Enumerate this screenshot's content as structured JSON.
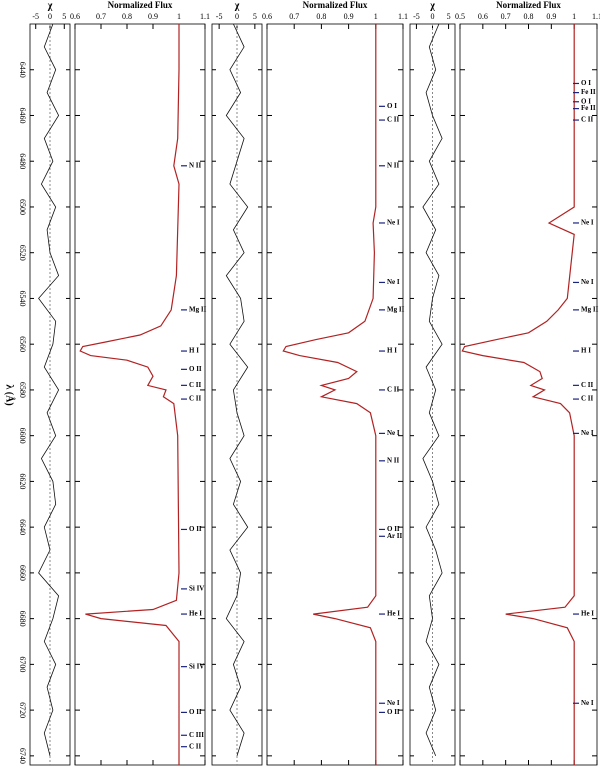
{
  "chart_data": {
    "type": "line",
    "x_label": "λ (Å)",
    "xlim": [
      6420,
      6744
    ],
    "xticks": [
      6440,
      6460,
      6480,
      6500,
      6520,
      6540,
      6560,
      6580,
      6600,
      6620,
      6640,
      6660,
      6680,
      6700,
      6720,
      6740
    ],
    "chi_label": "χ",
    "flux_label": "Normalized Flux",
    "panels": [
      {
        "flux_lim": [
          0.6,
          1.1
        ],
        "flux_ticks": [
          0.6,
          0.7,
          0.8,
          0.9,
          1,
          1.1
        ],
        "chi_lim": [
          -7,
          7
        ],
        "chi_ticks": [
          -5,
          0,
          5
        ],
        "x": [
          6420,
          6440,
          6470,
          6482,
          6490,
          6530,
          6545,
          6552,
          6556,
          6559,
          6561,
          6563,
          6565,
          6567,
          6570,
          6574,
          6578,
          6580,
          6583,
          6586,
          6600,
          6660,
          6672,
          6676,
          6678,
          6680,
          6683,
          6690,
          6744
        ],
        "model": {
          "color": "#b22222",
          "values": [
            1,
            1,
            0.995,
            0.98,
            1,
            0.99,
            0.97,
            0.93,
            0.85,
            0.72,
            0.63,
            0.62,
            0.66,
            0.8,
            0.88,
            0.9,
            0.88,
            0.95,
            0.94,
            0.98,
            0.995,
            1,
            0.99,
            0.9,
            0.64,
            0.7,
            0.95,
            1,
            1
          ]
        },
        "residual": {
          "color": "#111111",
          "values": [
            1,
            -2,
            2,
            -1,
            3,
            -2,
            1,
            -3,
            2,
            -1,
            0,
            3,
            -4,
            2,
            1,
            -2,
            3,
            -1,
            2,
            -3,
            1,
            2,
            -2,
            0,
            -4,
            3,
            1,
            -2,
            2,
            -1,
            1,
            -2,
            0
          ]
        },
        "lines": [
          {
            "label": "N II",
            "wavelength": 6482
          },
          {
            "label": "Mg II",
            "wavelength": 6545
          },
          {
            "label": "H I",
            "wavelength": 6563
          },
          {
            "label": "O II",
            "wavelength": 6571
          },
          {
            "label": "C II",
            "wavelength": 6578
          },
          {
            "label": "C II",
            "wavelength": 6584
          },
          {
            "label": "O II",
            "wavelength": 6641
          },
          {
            "label": "Si IV",
            "wavelength": 6667
          },
          {
            "label": "He I",
            "wavelength": 6678
          },
          {
            "label": "Si IV",
            "wavelength": 6701
          },
          {
            "label": "O II",
            "wavelength": 6721
          },
          {
            "label": "C III",
            "wavelength": 6731
          },
          {
            "label": "C II",
            "wavelength": 6736
          }
        ]
      },
      {
        "flux_lim": [
          0.6,
          1.1
        ],
        "flux_ticks": [
          0.6,
          0.7,
          0.8,
          0.9,
          1,
          1.1
        ],
        "chi_lim": [
          -7,
          7
        ],
        "chi_ticks": [
          -5,
          0,
          5
        ],
        "x": [
          6420,
          6500,
          6507,
          6520,
          6540,
          6550,
          6555,
          6558,
          6561,
          6563,
          6565,
          6568,
          6572,
          6575,
          6578,
          6580,
          6583,
          6586,
          6590,
          6600,
          6670,
          6675,
          6678,
          6680,
          6684,
          6690,
          6744
        ],
        "model": {
          "color": "#b22222",
          "values": [
            1,
            1,
            0.99,
            0.995,
            0.99,
            0.96,
            0.9,
            0.78,
            0.67,
            0.66,
            0.72,
            0.86,
            0.93,
            0.9,
            0.8,
            0.85,
            0.8,
            0.93,
            0.98,
            1,
            1,
            0.97,
            0.77,
            0.85,
            0.98,
            1,
            1
          ]
        },
        "residual": {
          "color": "#111111",
          "values": [
            -1,
            2,
            -2,
            1,
            -3,
            2,
            0,
            -2,
            3,
            -1,
            2,
            -3,
            1,
            2,
            -2,
            3,
            -1,
            0,
            2,
            -2,
            1,
            -1,
            3,
            -2,
            1,
            0,
            -3,
            2,
            -1,
            1,
            -2,
            2,
            0
          ]
        },
        "lines": [
          {
            "label": "O I",
            "wavelength": 6456
          },
          {
            "label": "C II",
            "wavelength": 6462
          },
          {
            "label": "N II",
            "wavelength": 6482
          },
          {
            "label": "Ne I",
            "wavelength": 6507
          },
          {
            "label": "Ne I",
            "wavelength": 6533
          },
          {
            "label": "Mg II",
            "wavelength": 6545
          },
          {
            "label": "H I",
            "wavelength": 6563
          },
          {
            "label": "C II",
            "wavelength": 6580
          },
          {
            "label": "Ne I",
            "wavelength": 6599
          },
          {
            "label": "N II",
            "wavelength": 6611
          },
          {
            "label": "O II",
            "wavelength": 6641
          },
          {
            "label": "Ar II",
            "wavelength": 6644
          },
          {
            "label": "He I",
            "wavelength": 6678
          },
          {
            "label": "Ne I",
            "wavelength": 6717
          },
          {
            "label": "O II",
            "wavelength": 6721
          }
        ]
      },
      {
        "flux_lim": [
          0.5,
          1.1
        ],
        "flux_ticks": [
          0.5,
          0.6,
          0.7,
          0.8,
          0.9,
          1,
          1.1
        ],
        "chi_lim": [
          -7,
          7
        ],
        "chi_ticks": [
          -5,
          0,
          5
        ],
        "x": [
          6420,
          6500,
          6507,
          6512,
          6540,
          6545,
          6550,
          6555,
          6558,
          6561,
          6563,
          6565,
          6568,
          6572,
          6575,
          6578,
          6580,
          6583,
          6586,
          6590,
          6600,
          6670,
          6675,
          6678,
          6680,
          6684,
          6690,
          6744
        ],
        "model": {
          "color": "#b22222",
          "values": [
            1,
            1,
            0.89,
            1,
            0.97,
            0.93,
            0.88,
            0.8,
            0.66,
            0.52,
            0.51,
            0.6,
            0.78,
            0.85,
            0.86,
            0.81,
            0.87,
            0.82,
            0.94,
            0.98,
            1,
            1,
            0.96,
            0.7,
            0.82,
            0.97,
            1,
            1
          ]
        },
        "residual": {
          "color": "#111111",
          "values": [
            2,
            -1,
            1,
            -2,
            0,
            3,
            -1,
            2,
            -3,
            1,
            -2,
            2,
            0,
            -1,
            3,
            -2,
            1,
            -1,
            2,
            -3,
            0,
            2,
            -2,
            1,
            3,
            -1,
            0,
            -2,
            2,
            -1,
            1,
            -2,
            1
          ]
        },
        "lines": [
          {
            "label": "O I",
            "wavelength": 6446
          },
          {
            "label": "Fe II",
            "wavelength": 6450
          },
          {
            "label": "O I",
            "wavelength": 6454
          },
          {
            "label": "Fe II",
            "wavelength": 6457
          },
          {
            "label": "C II",
            "wavelength": 6462
          },
          {
            "label": "Ne I",
            "wavelength": 6507
          },
          {
            "label": "Ne I",
            "wavelength": 6533
          },
          {
            "label": "Mg II",
            "wavelength": 6545
          },
          {
            "label": "H I",
            "wavelength": 6563
          },
          {
            "label": "C II",
            "wavelength": 6578
          },
          {
            "label": "C II",
            "wavelength": 6584
          },
          {
            "label": "Ne I",
            "wavelength": 6599
          },
          {
            "label": "He I",
            "wavelength": 6678
          },
          {
            "label": "Ne I",
            "wavelength": 6717
          }
        ]
      }
    ]
  }
}
